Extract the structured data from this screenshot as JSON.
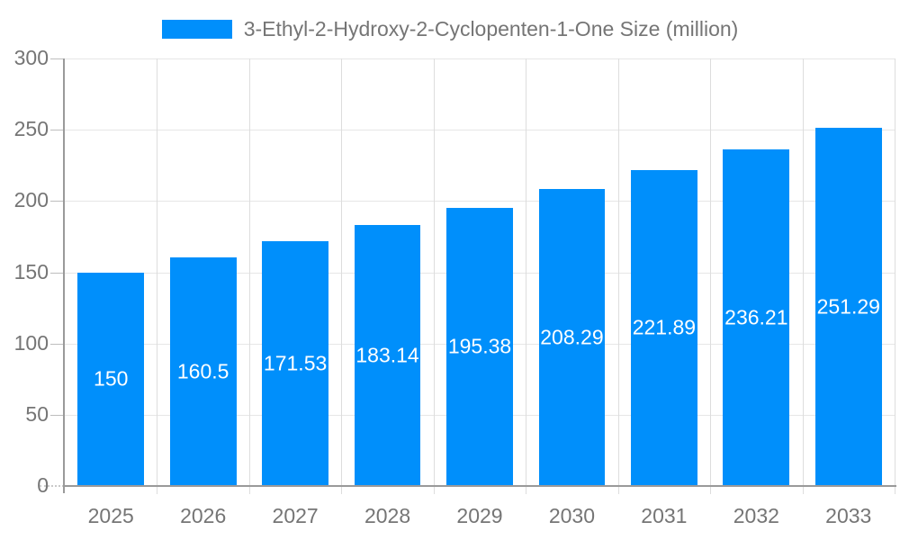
{
  "chart_data": {
    "type": "bar",
    "title": "3-Ethyl-2-Hydroxy-2-Cyclopenten-1-One Size (million)",
    "legend": {
      "label": "3-Ethyl-2-Hydroxy-2-Cyclopenten-1-One Size (million)",
      "swatch_color": "#008FFB",
      "position": "top-center"
    },
    "categories": [
      "2025",
      "2026",
      "2027",
      "2028",
      "2029",
      "2030",
      "2031",
      "2032",
      "2033"
    ],
    "series": [
      {
        "name": "3-Ethyl-2-Hydroxy-2-Cyclopenten-1-One Size (million)",
        "values": [
          150,
          160.5,
          171.53,
          183.14,
          195.38,
          208.29,
          221.89,
          236.21,
          251.29
        ],
        "labels": [
          "150",
          "160.5",
          "171.53",
          "183.14",
          "195.38",
          "208.29",
          "221.89",
          "236.21",
          "251.29"
        ]
      }
    ],
    "xlabel": "",
    "ylabel": "",
    "ylim": [
      0,
      300
    ],
    "yticks": [
      0,
      50,
      100,
      150,
      200,
      250,
      300
    ],
    "grid": {
      "horizontal": true,
      "vertical": true
    },
    "bar_width_ratio": 0.72,
    "bar_label_position": "center-inside",
    "colors": {
      "bar": "#008FFB",
      "grid_horizontal": "#E6E6E6",
      "grid_vertical": "#DDDDDD",
      "axis_line": "#9A9A9A",
      "tick": "#BDBDBD",
      "zero_tick": "#C9C9C9",
      "axis_label": "#757575",
      "title": "#757575",
      "bar_label": "#FFFFFF",
      "background": "#FFFFFF"
    }
  }
}
